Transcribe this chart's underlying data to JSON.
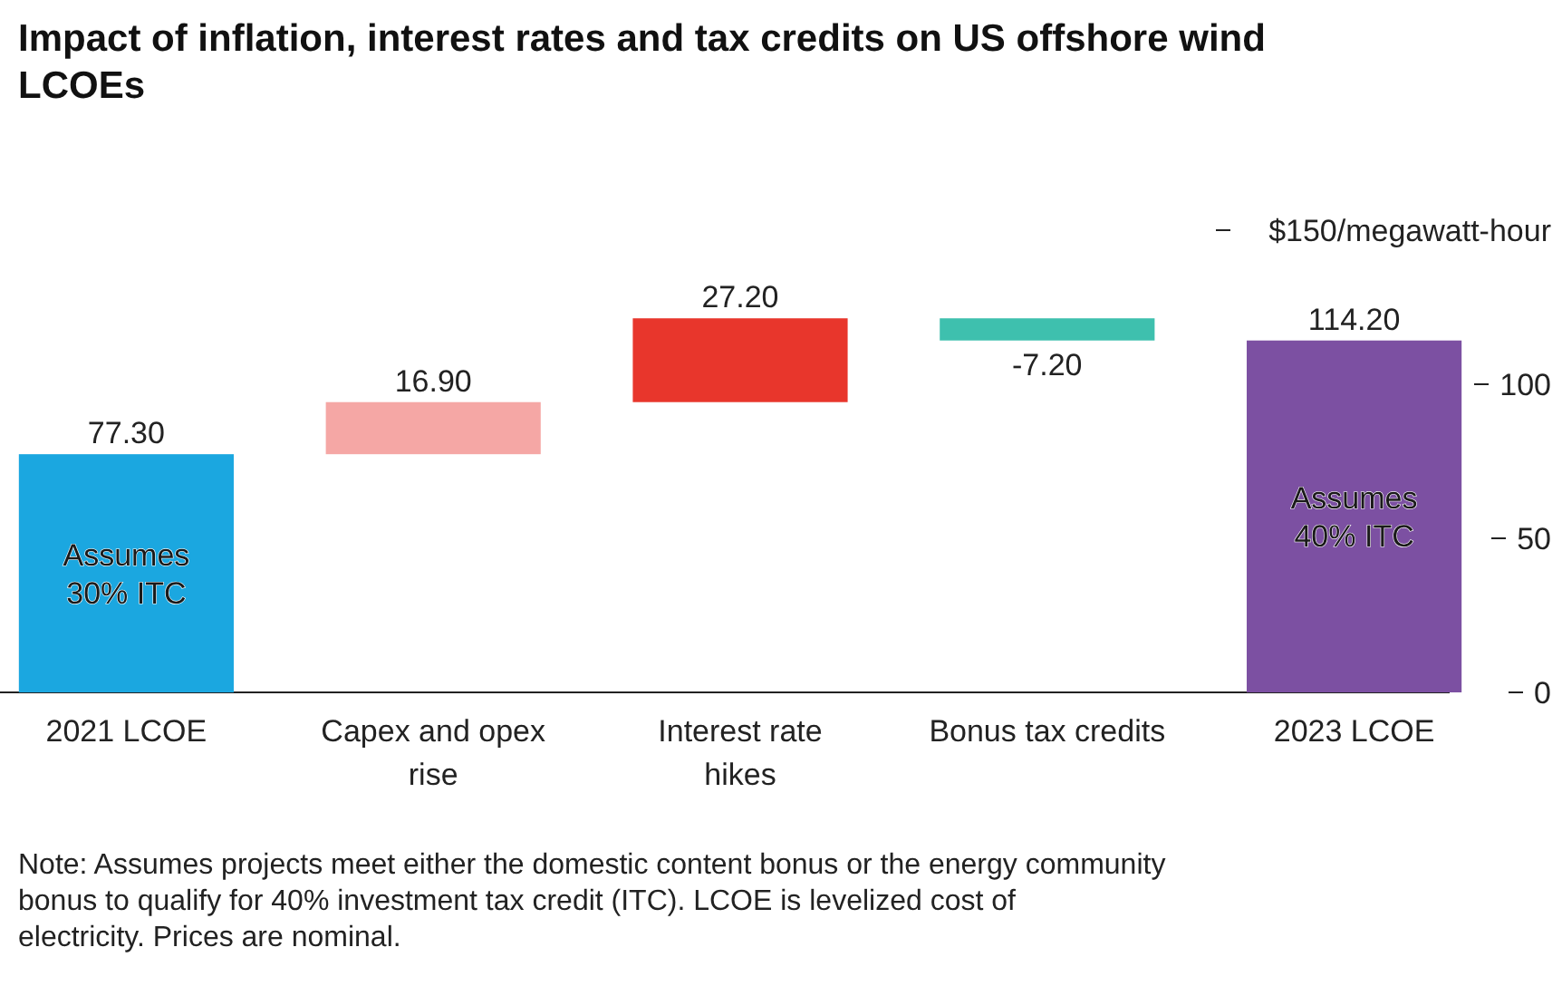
{
  "chart_data": {
    "type": "bar",
    "title": "Impact of inflation, interest rates and tax credits on US offshore wind LCOEs",
    "categories": [
      "2021 LCOE",
      "Capex and opex rise",
      "Interest rate hikes",
      "Bonus tax credits",
      "2023 LCOE"
    ],
    "values": [
      77.3,
      16.9,
      27.2,
      -7.2,
      114.2
    ],
    "base": [
      0,
      77.3,
      94.2,
      121.4,
      0
    ],
    "colors": [
      "#1ba7e0",
      "#f5a7a5",
      "#e8362c",
      "#3ec0ae",
      "#7c50a2"
    ],
    "value_labels": [
      "77.30",
      "16.90",
      "27.20",
      "-7.20",
      "114.20"
    ],
    "ylim": [
      0,
      150
    ],
    "yticks": [
      0,
      50,
      100,
      {
        "value": 150,
        "label": "$150/megawatt-hour"
      }
    ],
    "annotations": [
      "Assumes 30% ITC",
      "Assumes 40% ITC",
      "Note: Assumes projects meet either the domestic content bonus or the energy community bonus to qualify for 40% investment tax credit (ITC). LCOE is levelized cost of electricity. Prices are nominal."
    ]
  }
}
